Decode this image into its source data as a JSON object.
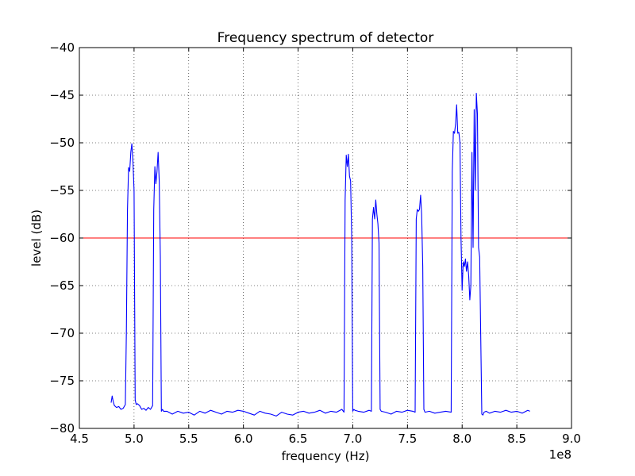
{
  "chart_data": {
    "type": "line",
    "title": "Frequency spectrum of detector",
    "xlabel": "frequency (Hz)",
    "ylabel": "level (dB)",
    "x_offset_label": "1e8",
    "xlim": [
      4.5,
      9.0
    ],
    "ylim": [
      -80,
      -40
    ],
    "x_ticks": [
      4.5,
      5.0,
      5.5,
      6.0,
      6.5,
      7.0,
      7.5,
      8.0,
      8.5,
      9.0
    ],
    "x_tick_labels": [
      "4.5",
      "5.0",
      "5.5",
      "6.0",
      "6.5",
      "7.0",
      "7.5",
      "8.0",
      "8.5",
      "9.0"
    ],
    "y_ticks": [
      -80,
      -75,
      -70,
      -65,
      -60,
      -55,
      -50,
      -45,
      -40
    ],
    "y_tick_labels": [
      "−80",
      "−75",
      "−70",
      "−65",
      "−60",
      "−55",
      "−50",
      "−45",
      "−40"
    ],
    "grid": true,
    "threshold": {
      "y": -60,
      "color": "#ff0000"
    },
    "series": [
      {
        "color": "#0000ff",
        "x": [
          4.79,
          4.8,
          4.81,
          4.82,
          4.84,
          4.86,
          4.88,
          4.9,
          4.92,
          4.93,
          4.94,
          4.95,
          4.96,
          4.97,
          4.98,
          4.99,
          5.0,
          5.01,
          5.02,
          5.03,
          5.05,
          5.07,
          5.09,
          5.11,
          5.13,
          5.15,
          5.17,
          5.18,
          5.19,
          5.2,
          5.21,
          5.22,
          5.23,
          5.24,
          5.25,
          5.26,
          5.27,
          5.3,
          5.35,
          5.4,
          5.45,
          5.5,
          5.55,
          5.6,
          5.65,
          5.7,
          5.75,
          5.8,
          5.85,
          5.9,
          5.95,
          6.0,
          6.05,
          6.1,
          6.15,
          6.2,
          6.25,
          6.3,
          6.35,
          6.4,
          6.45,
          6.5,
          6.55,
          6.6,
          6.65,
          6.7,
          6.75,
          6.8,
          6.85,
          6.9,
          6.92,
          6.93,
          6.94,
          6.95,
          6.96,
          6.97,
          6.98,
          6.99,
          7.0,
          7.01,
          7.02,
          7.05,
          7.1,
          7.15,
          7.17,
          7.18,
          7.19,
          7.2,
          7.21,
          7.22,
          7.23,
          7.24,
          7.25,
          7.26,
          7.3,
          7.35,
          7.4,
          7.45,
          7.5,
          7.55,
          7.57,
          7.58,
          7.59,
          7.6,
          7.61,
          7.62,
          7.63,
          7.64,
          7.65,
          7.66,
          7.7,
          7.75,
          7.8,
          7.85,
          7.9,
          7.91,
          7.92,
          7.93,
          7.94,
          7.95,
          7.96,
          7.97,
          7.98,
          7.99,
          8.0,
          8.01,
          8.02,
          8.03,
          8.04,
          8.05,
          8.06,
          8.07,
          8.08,
          8.09,
          8.1,
          8.11,
          8.12,
          8.13,
          8.14,
          8.15,
          8.16,
          8.17,
          8.18,
          8.19,
          8.2,
          8.22,
          8.25,
          8.3,
          8.35,
          8.4,
          8.45,
          8.5,
          8.55,
          8.6,
          8.62
        ],
        "y": [
          -77.3,
          -76.6,
          -77.2,
          -77.6,
          -77.8,
          -77.7,
          -78.0,
          -77.9,
          -77.5,
          -70.0,
          -57.0,
          -52.6,
          -53.0,
          -51.0,
          -50.1,
          -52.0,
          -55.0,
          -77.0,
          -77.5,
          -77.4,
          -77.6,
          -78.0,
          -77.9,
          -78.1,
          -77.8,
          -78.0,
          -77.6,
          -57.0,
          -52.5,
          -54.3,
          -53.0,
          -51.0,
          -54.0,
          -62.0,
          -78.2,
          -78.0,
          -78.2,
          -78.2,
          -78.5,
          -78.2,
          -78.4,
          -78.3,
          -78.6,
          -78.2,
          -78.4,
          -78.1,
          -78.3,
          -78.5,
          -78.2,
          -78.3,
          -78.1,
          -78.2,
          -78.4,
          -78.6,
          -78.2,
          -78.4,
          -78.5,
          -78.7,
          -78.3,
          -78.5,
          -78.6,
          -78.3,
          -78.2,
          -78.4,
          -78.3,
          -78.1,
          -78.4,
          -78.2,
          -78.3,
          -78.0,
          -78.3,
          -56.0,
          -51.3,
          -52.5,
          -51.2,
          -53.5,
          -54.0,
          -60.0,
          -78.2,
          -78.0,
          -78.1,
          -78.2,
          -78.3,
          -78.1,
          -78.2,
          -58.0,
          -56.8,
          -58.0,
          -56.0,
          -57.5,
          -58.5,
          -60.5,
          -78.0,
          -78.2,
          -78.3,
          -78.5,
          -78.2,
          -78.3,
          -78.1,
          -78.2,
          -78.3,
          -58.0,
          -57.0,
          -57.2,
          -57.0,
          -55.5,
          -57.5,
          -63.0,
          -78.0,
          -78.3,
          -78.2,
          -78.4,
          -78.3,
          -78.2,
          -78.3,
          -53.0,
          -48.8,
          -49.0,
          -48.0,
          -46.0,
          -49.0,
          -48.9,
          -50.0,
          -60.0,
          -65.5,
          -62.5,
          -63.0,
          -62.2,
          -63.5,
          -62.5,
          -64.0,
          -66.5,
          -65.0,
          -51.0,
          -61.0,
          -46.5,
          -55.0,
          -44.8,
          -47.0,
          -61.0,
          -62.0,
          -70.0,
          -78.5,
          -78.6,
          -78.3,
          -78.2,
          -78.4,
          -78.2,
          -78.3,
          -78.1,
          -78.3,
          -78.2,
          -78.4,
          -78.1,
          -78.2
        ]
      }
    ]
  }
}
